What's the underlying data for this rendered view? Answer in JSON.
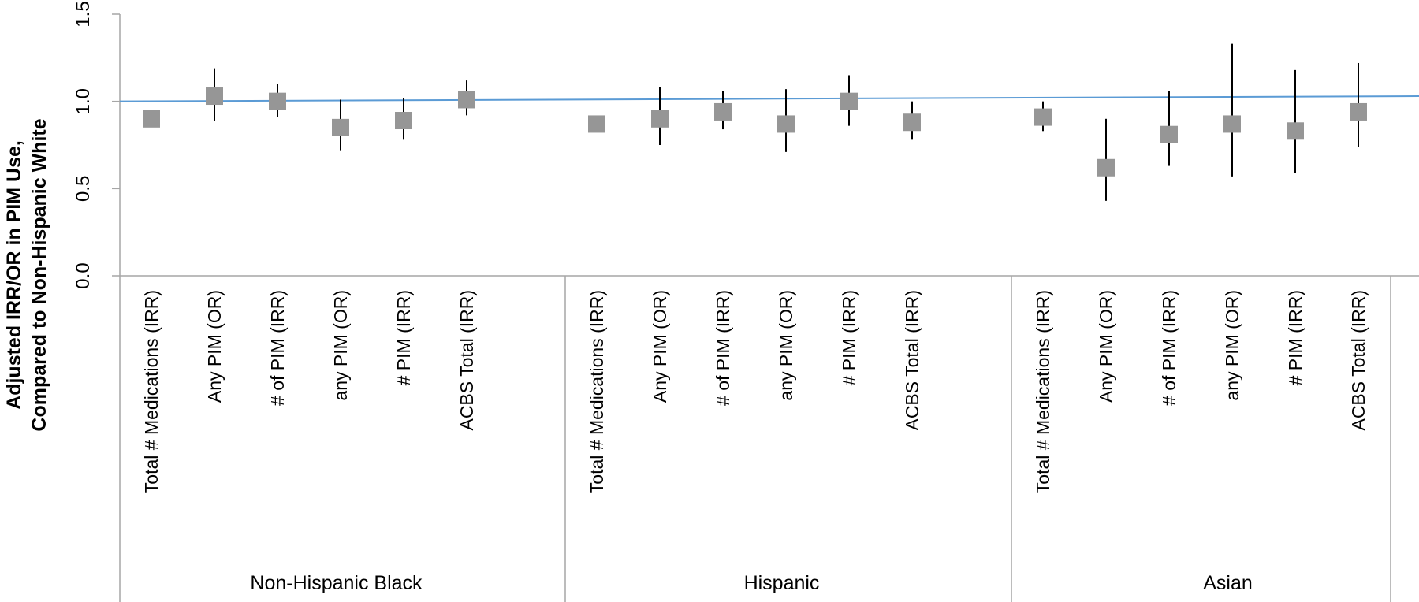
{
  "chart_data": {
    "type": "scatter",
    "ylabel_lines": [
      "Adjusted IRR/OR in PIM Use,",
      "Compared to Non-Hispanic White"
    ],
    "ylim": [
      0,
      1.5
    ],
    "yticks": [
      "0.0",
      "0.5",
      "1.0",
      "1.5"
    ],
    "reference_line": {
      "y_start": 1.0,
      "y_end": 1.03,
      "color": "#5b9bd5"
    },
    "marker_color": "#969696",
    "groups": [
      {
        "name": "Non-Hispanic Black",
        "points": [
          {
            "label": "Total # Medications (IRR)",
            "value": 0.9,
            "lower": null,
            "upper": null
          },
          {
            "label": "Any PIM (OR)",
            "value": 1.03,
            "lower": 0.89,
            "upper": 1.19
          },
          {
            "label": "# of PIM (IRR)",
            "value": 1.0,
            "lower": 0.91,
            "upper": 1.1
          },
          {
            "label": "any PIM  (OR)",
            "value": 0.85,
            "lower": 0.72,
            "upper": 1.01
          },
          {
            "label": "# PIM (IRR)",
            "value": 0.89,
            "lower": 0.78,
            "upper": 1.02
          },
          {
            "label": "ACBS Total (IRR)",
            "value": 1.01,
            "lower": 0.92,
            "upper": 1.12
          }
        ]
      },
      {
        "name": "Hispanic",
        "points": [
          {
            "label": "Total # Medications (IRR)",
            "value": 0.87,
            "lower": null,
            "upper": null
          },
          {
            "label": "Any PIM (OR)",
            "value": 0.9,
            "lower": 0.75,
            "upper": 1.08
          },
          {
            "label": "# of PIM (IRR)",
            "value": 0.94,
            "lower": 0.84,
            "upper": 1.06
          },
          {
            "label": "any PIM  (OR)",
            "value": 0.87,
            "lower": 0.71,
            "upper": 1.07
          },
          {
            "label": "# PIM (IRR)",
            "value": 1.0,
            "lower": 0.86,
            "upper": 1.15
          },
          {
            "label": "ACBS Total (IRR)",
            "value": 0.88,
            "lower": 0.78,
            "upper": 1.0
          }
        ]
      },
      {
        "name": "Asian",
        "points": [
          {
            "label": "Total # Medications (IRR)",
            "value": 0.91,
            "lower": 0.83,
            "upper": 1.0
          },
          {
            "label": "Any PIM (OR)",
            "value": 0.62,
            "lower": 0.43,
            "upper": 0.9
          },
          {
            "label": "# of PIM (IRR)",
            "value": 0.81,
            "lower": 0.63,
            "upper": 1.06
          },
          {
            "label": "any PIM  (OR)",
            "value": 0.87,
            "lower": 0.57,
            "upper": 1.33
          },
          {
            "label": "# PIM (IRR)",
            "value": 0.83,
            "lower": 0.59,
            "upper": 1.18
          },
          {
            "label": "ACBS Total (IRR)",
            "value": 0.94,
            "lower": 0.74,
            "upper": 1.22
          }
        ]
      }
    ]
  }
}
